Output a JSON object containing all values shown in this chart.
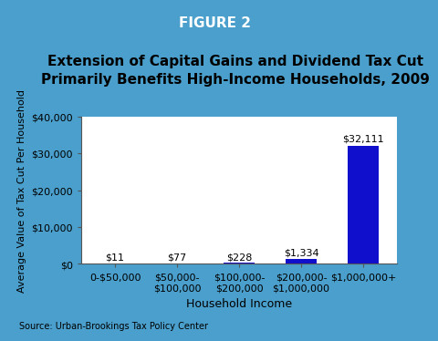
{
  "title_line1": "Extension of Capital Gains and Dividend Tax Cut",
  "title_line2": "Primarily Benefits High-Income Households, 2009",
  "header": "FIGURE 2",
  "header_bg": "#1B6FAB",
  "header_text_color": "#FFFFFF",
  "categories": [
    "0-$50,000",
    "$50,000-\n$100,000",
    "$100,000-\n$200,000",
    "$200,000-\n$1,000,000",
    "$1,000,000+"
  ],
  "values": [
    11,
    77,
    228,
    1334,
    32111
  ],
  "labels": [
    "$11",
    "$77",
    "$228",
    "$1,334",
    "$32,111"
  ],
  "bar_color": "#1010CC",
  "xlabel": "Household Income",
  "ylabel": "Average Value of Tax Cut Per Household",
  "ylim": [
    0,
    40000
  ],
  "yticks": [
    0,
    10000,
    20000,
    30000,
    40000
  ],
  "ytick_labels": [
    "$0",
    "$10,000",
    "$20,000",
    "$30,000",
    "$40,000"
  ],
  "source": "Source: Urban-Brookings Tax Policy Center",
  "outer_bg": "#4A9FCC",
  "inner_bg": "#FFFFFF",
  "title_fontsize": 11,
  "axis_label_fontsize": 8,
  "tick_fontsize": 8,
  "annotation_fontsize": 8,
  "source_fontsize": 7,
  "header_fontsize": 11
}
